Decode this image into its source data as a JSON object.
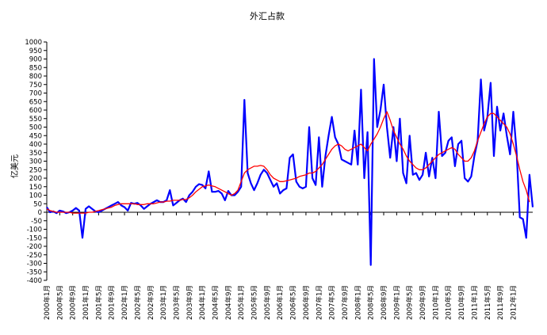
{
  "chart_data": {
    "type": "line",
    "title": "外汇占款",
    "ylabel": "亿美元",
    "xlabel": "",
    "ylim": [
      -400,
      1000
    ],
    "ystep": 50,
    "grid": false,
    "legend": "none",
    "x_tick_labels": [
      "2000年1月",
      "2000年5月",
      "2000年9月",
      "2001年1月",
      "2001年5月",
      "2001年9月",
      "2002年1月",
      "2002年5月",
      "2002年9月",
      "2003年1月",
      "2003年5月",
      "2003年9月",
      "2004年1月",
      "2004年5月",
      "2004年9月",
      "2005年1月",
      "2005年5月",
      "2005年9月",
      "2006年1月",
      "2006年5月",
      "2006年9月",
      "2007年1月",
      "2007年5月",
      "2007年9月",
      "2008年1月",
      "2008年5月",
      "2008年9月",
      "2009年1月",
      "2009年5月",
      "2009年9月",
      "2010年1月",
      "2010年5月",
      "2010年9月",
      "2011年1月",
      "2011年5月",
      "2011年9月",
      "2012年1月"
    ],
    "x_tick_every": 4,
    "series": [
      {
        "color": "#0000ff",
        "values": [
          30,
          0,
          5,
          -5,
          10,
          5,
          -5,
          0,
          10,
          25,
          10,
          -150,
          20,
          35,
          20,
          5,
          0,
          10,
          20,
          30,
          40,
          50,
          60,
          40,
          30,
          10,
          55,
          50,
          55,
          40,
          20,
          35,
          50,
          60,
          70,
          60,
          60,
          70,
          130,
          40,
          55,
          70,
          80,
          60,
          100,
          120,
          150,
          165,
          160,
          140,
          240,
          120,
          120,
          125,
          110,
          70,
          125,
          100,
          100,
          120,
          150,
          660,
          230,
          170,
          130,
          170,
          220,
          250,
          230,
          190,
          150,
          170,
          110,
          130,
          140,
          320,
          340,
          180,
          150,
          140,
          150,
          500,
          200,
          160,
          440,
          150,
          330,
          450,
          560,
          440,
          400,
          310,
          300,
          290,
          280,
          480,
          280,
          720,
          200,
          470,
          -310,
          900,
          500,
          600,
          750,
          500,
          320,
          500,
          300,
          550,
          230,
          170,
          450,
          220,
          230,
          190,
          220,
          350,
          210,
          320,
          200,
          590,
          330,
          350,
          420,
          440,
          270,
          400,
          420,
          200,
          180,
          210,
          330,
          420,
          780,
          480,
          560,
          760,
          330,
          620,
          480,
          580,
          450,
          340,
          590,
          360,
          -30,
          -40,
          -150,
          220,
          30
        ]
      },
      {
        "color": "#ff0000",
        "values": [
          20,
          10,
          5,
          0,
          0,
          0,
          0,
          0,
          -5,
          -5,
          -5,
          -5,
          -5,
          0,
          0,
          5,
          10,
          15,
          20,
          25,
          30,
          40,
          45,
          50,
          50,
          50,
          50,
          50,
          45,
          45,
          45,
          50,
          50,
          50,
          55,
          60,
          60,
          65,
          65,
          70,
          70,
          70,
          75,
          75,
          85,
          100,
          120,
          135,
          150,
          155,
          160,
          155,
          150,
          140,
          130,
          120,
          110,
          100,
          110,
          130,
          180,
          230,
          250,
          260,
          270,
          270,
          275,
          270,
          250,
          220,
          200,
          190,
          180,
          180,
          185,
          190,
          195,
          200,
          210,
          215,
          220,
          230,
          230,
          240,
          260,
          280,
          310,
          340,
          370,
          390,
          400,
          390,
          370,
          360,
          370,
          380,
          390,
          400,
          380,
          360,
          400,
          430,
          460,
          500,
          550,
          590,
          540,
          480,
          440,
          400,
          370,
          330,
          300,
          280,
          260,
          250,
          250,
          260,
          280,
          300,
          320,
          340,
          350,
          360,
          370,
          380,
          370,
          340,
          320,
          300,
          300,
          320,
          360,
          420,
          470,
          520,
          560,
          580,
          580,
          560,
          540,
          520,
          500,
          460,
          400,
          330,
          250,
          180,
          130,
          60
        ]
      }
    ]
  }
}
